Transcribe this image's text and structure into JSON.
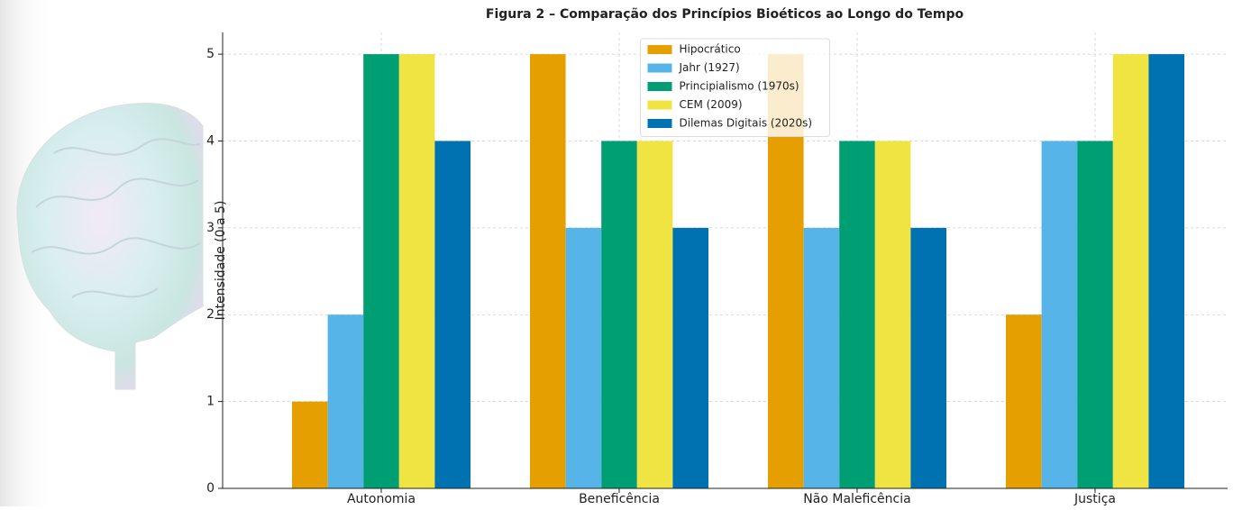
{
  "chart_data": {
    "type": "bar",
    "title": "Figura 2 – Comparação dos Princípios Bioéticos ao Longo do Tempo",
    "y_label": "Intensidade (0 a 5)",
    "categories": [
      "Autonomia",
      "Beneficência",
      "Não Maleficência",
      "Justiça"
    ],
    "series": [
      {
        "name": "Hipocrático",
        "color": "#E69F00",
        "values": [
          1,
          5,
          5,
          2
        ]
      },
      {
        "name": "Jahr (1927)",
        "color": "#56B4E9",
        "values": [
          2,
          3,
          3,
          4
        ]
      },
      {
        "name": "Principialismo (1970s)",
        "color": "#009E73",
        "values": [
          5,
          4,
          4,
          4
        ]
      },
      {
        "name": "CEM (2009)",
        "color": "#F0E442",
        "values": [
          5,
          4,
          4,
          5
        ]
      },
      {
        "name": "Dilemas Digitais (2020s)",
        "color": "#0072B2",
        "values": [
          4,
          3,
          3,
          5
        ]
      }
    ],
    "ylim": [
      0,
      5.25
    ],
    "yticks": [
      0,
      1,
      2,
      3,
      4,
      5
    ],
    "grid": true,
    "legend": "upper center"
  }
}
